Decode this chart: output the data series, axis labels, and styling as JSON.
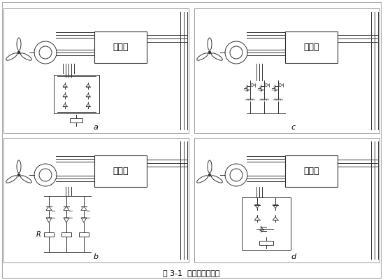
{
  "title": "图 3-1  主动式撬棒电路",
  "labels": [
    "a",
    "b",
    "c",
    "d"
  ],
  "converter_text": "变流器",
  "bg_color": "#ffffff",
  "border_color": "#888888",
  "line_color": "#333333",
  "font_size_label": 8,
  "font_size_title": 8,
  "font_size_converter": 9
}
